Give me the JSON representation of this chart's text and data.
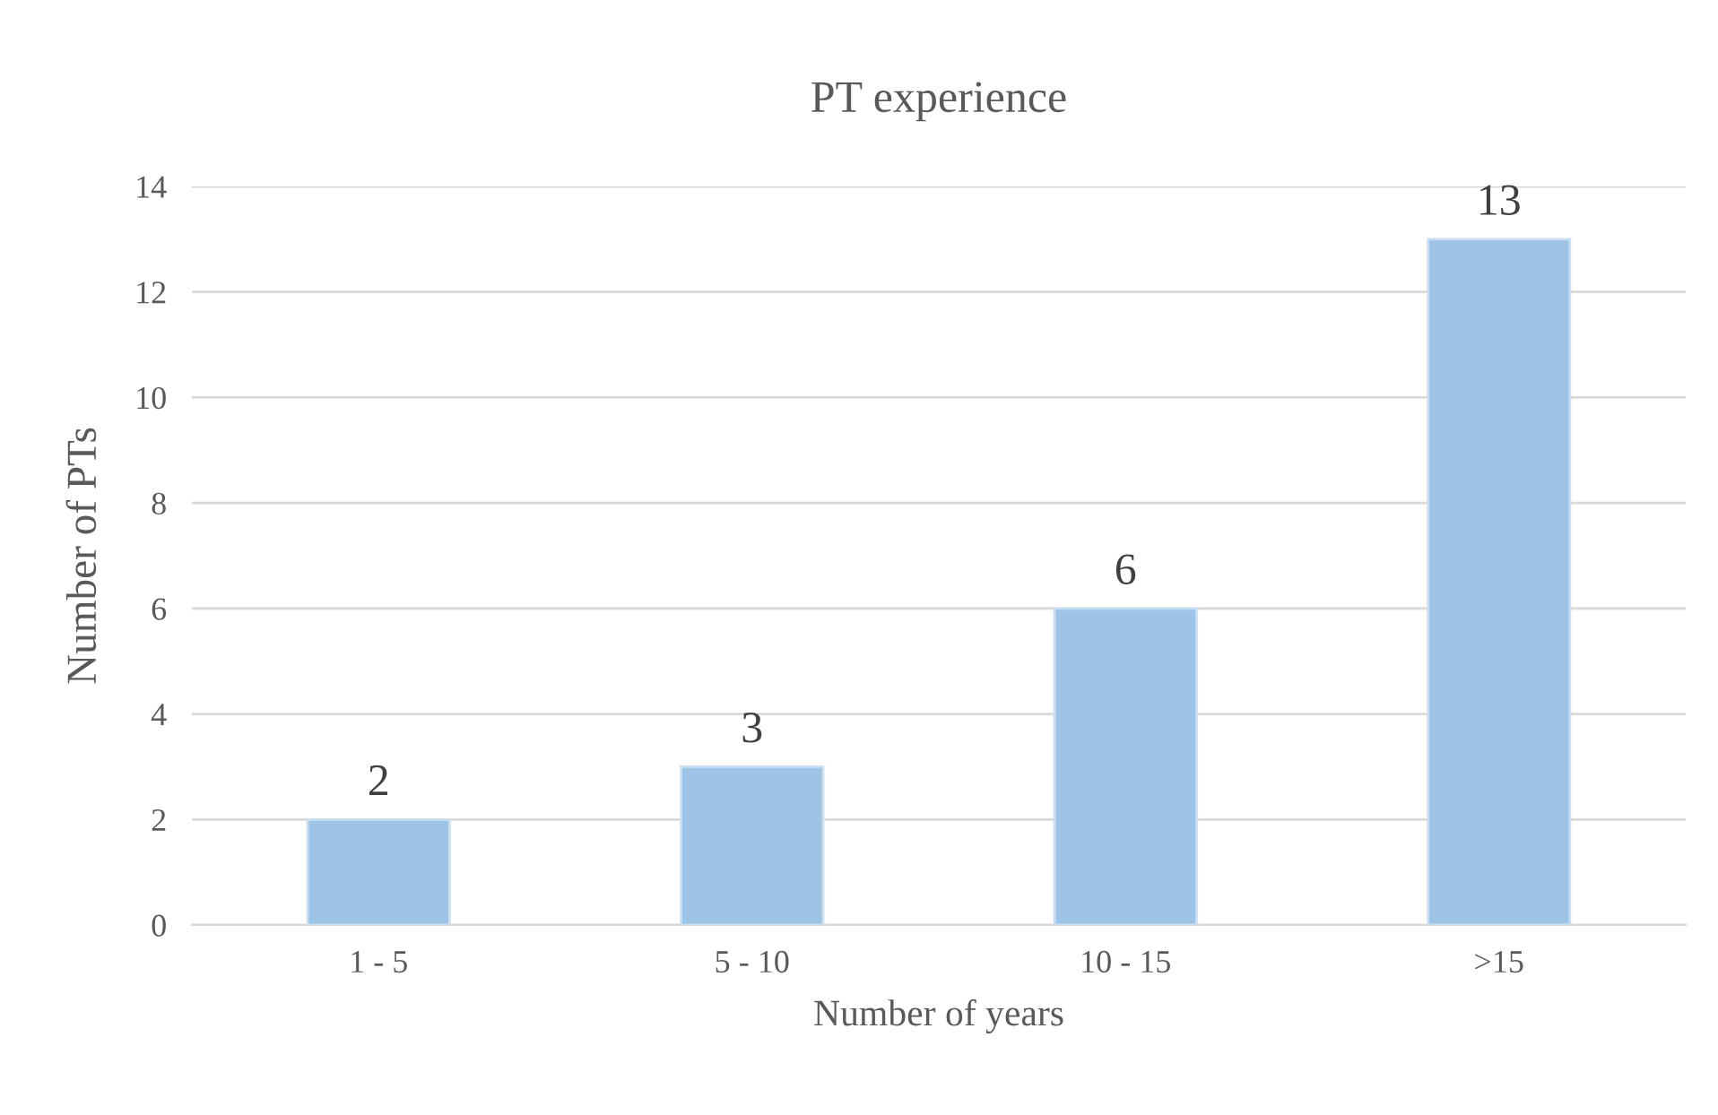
{
  "chart_data": {
    "type": "bar",
    "title": "PT experience",
    "xlabel": "Number of years",
    "ylabel": "Number of PTs",
    "categories": [
      "1 - 5",
      "5 - 10",
      "10 - 15",
      ">15"
    ],
    "values": [
      2,
      3,
      6,
      13
    ],
    "color": "#9dc3e6",
    "ylim": [
      0,
      14
    ],
    "yticks": [
      0,
      2,
      4,
      6,
      8,
      10,
      12,
      14
    ],
    "grid": "y",
    "data_labels": true
  }
}
